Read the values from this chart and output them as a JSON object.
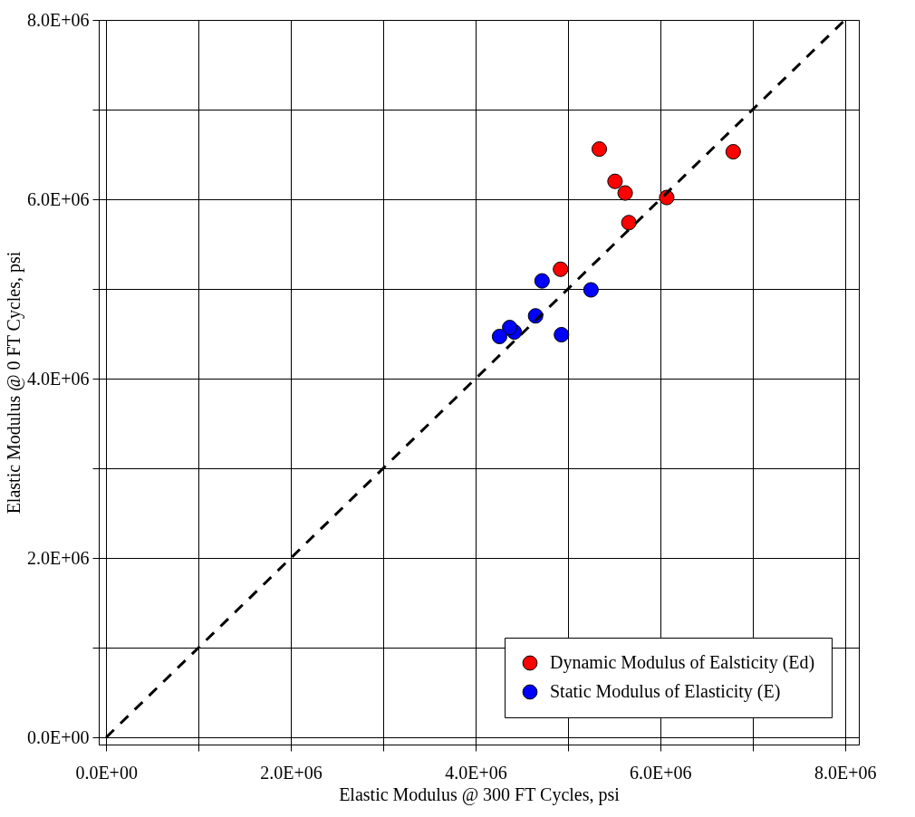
{
  "chart_data": {
    "type": "scatter",
    "xlabel": "Elastic Modulus @ 300 FT Cycles, psi",
    "ylabel": "Elastic Modulus @ 0 FT Cycles, psi",
    "xlim": [
      -80000,
      8150000
    ],
    "ylim": [
      -80000,
      8000000
    ],
    "xticks": [
      {
        "value": 0,
        "label": "0.0E+00"
      },
      {
        "value": 1000000,
        "label": null
      },
      {
        "value": 2000000,
        "label": "2.0E+06"
      },
      {
        "value": 3000000,
        "label": null
      },
      {
        "value": 4000000,
        "label": "4.0E+06"
      },
      {
        "value": 5000000,
        "label": null
      },
      {
        "value": 6000000,
        "label": "6.0E+06"
      },
      {
        "value": 7000000,
        "label": null
      },
      {
        "value": 8000000,
        "label": "8.0E+06"
      }
    ],
    "yticks": [
      {
        "value": 0,
        "label": "0.0E+00"
      },
      {
        "value": 1000000,
        "label": null
      },
      {
        "value": 2000000,
        "label": "2.0E+06"
      },
      {
        "value": 3000000,
        "label": null
      },
      {
        "value": 4000000,
        "label": "4.0E+06"
      },
      {
        "value": 5000000,
        "label": null
      },
      {
        "value": 6000000,
        "label": "6.0E+06"
      },
      {
        "value": 7000000,
        "label": null
      },
      {
        "value": 8000000,
        "label": "8.0E+06"
      }
    ],
    "grid": true,
    "legend": "bottom right",
    "marker": "circle",
    "series": [
      {
        "name": "Dynamic Modulus of Ealsticity (Ed)",
        "color": "#ff0000",
        "x": [
          5340000,
          5510000,
          5620000,
          5660000,
          6070000,
          6790000,
          4920000
        ],
        "values": [
          6560000,
          6200000,
          6070000,
          5740000,
          6020000,
          6530000,
          5220000
        ]
      },
      {
        "name": "Static Modulus of Elasticity (E)",
        "color": "#0000ff",
        "x": [
          4720000,
          5250000,
          4650000,
          4420000,
          4370000,
          4260000,
          4930000
        ],
        "values": [
          5090000,
          4990000,
          4700000,
          4520000,
          4570000,
          4470000,
          4490000
        ]
      },
      {
        "type": "line",
        "color": "#000000",
        "line_style": "dashed",
        "marker": "none",
        "x": [
          0,
          8000000
        ],
        "values": [
          0,
          8000000
        ]
      }
    ]
  }
}
